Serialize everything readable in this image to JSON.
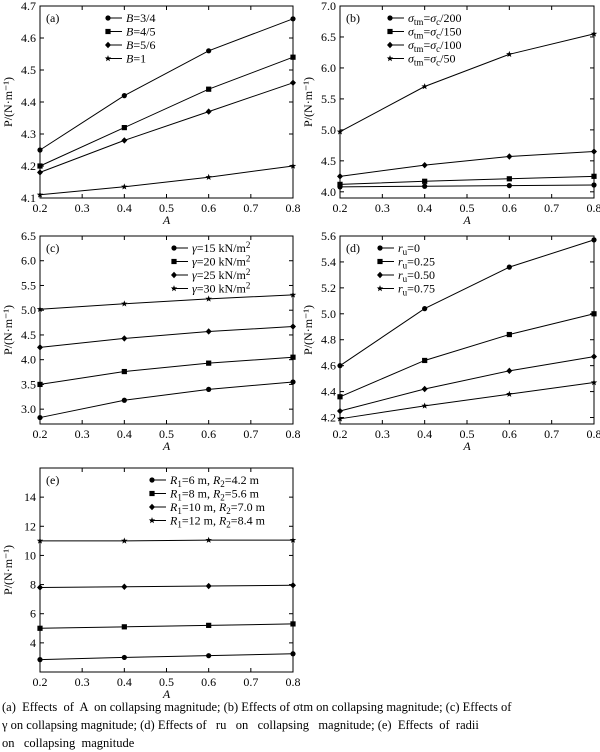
{
  "caption": {
    "line1": "(a)  Effects  of  A  on collapsing magnitude; (b) Effects of σtm on collapsing magnitude; (c) Effects of",
    "line2": "γ on collapsing magnitude; (d) Effects of   ru   on   collapsing   magnitude; (e)  Effects  of  radii",
    "line3": "on   collapsing  magnitude"
  },
  "chart_data": [
    {
      "type": "line",
      "panel_label": "(a)",
      "xlabel": "A",
      "ylabel": "P/(N·m⁻¹)",
      "x": [
        0.2,
        0.4,
        0.6,
        0.8
      ],
      "xlim": [
        0.2,
        0.8
      ],
      "ylim": [
        4.1,
        4.7
      ],
      "xticks": [
        "0.2",
        "0.3",
        "0.4",
        "0.5",
        "0.6",
        "0.7",
        "0.8"
      ],
      "yticks": [
        "4.1",
        "4.2",
        "4.3",
        "4.4",
        "4.5",
        "4.6",
        "4.7"
      ],
      "grid": false,
      "legend": "top-left",
      "series": [
        {
          "name": "B=3/4",
          "marker": "circle",
          "values": [
            4.25,
            4.42,
            4.56,
            4.66
          ]
        },
        {
          "name": "B=4/5",
          "marker": "square",
          "values": [
            4.2,
            4.32,
            4.44,
            4.54
          ]
        },
        {
          "name": "B=5/6",
          "marker": "diamond",
          "values": [
            4.18,
            4.28,
            4.37,
            4.46
          ]
        },
        {
          "name": "B=1",
          "marker": "star",
          "values": [
            4.11,
            4.135,
            4.165,
            4.2
          ]
        }
      ]
    },
    {
      "type": "line",
      "panel_label": "(b)",
      "xlabel": "A",
      "ylabel": "P/(N·m⁻¹)",
      "x": [
        0.2,
        0.4,
        0.6,
        0.8
      ],
      "xlim": [
        0.2,
        0.8
      ],
      "ylim": [
        3.9,
        7.0
      ],
      "xticks": [
        "0.2",
        "0.3",
        "0.4",
        "0.5",
        "0.6",
        "0.7",
        "0.8"
      ],
      "yticks": [
        "4.0",
        "4.5",
        "5.0",
        "5.5",
        "6.0",
        "6.5",
        "7.0"
      ],
      "grid": false,
      "legend": "top-left",
      "series": [
        {
          "name": "σtm=σc/200",
          "marker": "circle",
          "values": [
            4.08,
            4.09,
            4.1,
            4.11
          ]
        },
        {
          "name": "σtm=σc/150",
          "marker": "square",
          "values": [
            4.12,
            4.17,
            4.21,
            4.25
          ]
        },
        {
          "name": "σtm=σc/100",
          "marker": "diamond",
          "values": [
            4.25,
            4.43,
            4.57,
            4.65
          ]
        },
        {
          "name": "σtm=σc/50",
          "marker": "star",
          "values": [
            4.97,
            5.7,
            6.22,
            6.55
          ]
        }
      ]
    },
    {
      "type": "line",
      "panel_label": "(c)",
      "xlabel": "A",
      "ylabel": "P/(N·m⁻¹)",
      "x": [
        0.2,
        0.4,
        0.6,
        0.8
      ],
      "xlim": [
        0.2,
        0.8
      ],
      "ylim": [
        2.7,
        6.5
      ],
      "xticks": [
        "0.2",
        "0.3",
        "0.4",
        "0.5",
        "0.6",
        "0.7",
        "0.8"
      ],
      "yticks": [
        "3.0",
        "3.5",
        "4.0",
        "4.5",
        "5.0",
        "5.5",
        "6.0",
        "6.5"
      ],
      "grid": false,
      "legend": "top-right",
      "series": [
        {
          "name": "γ=15 kN/m2",
          "marker": "circle",
          "values": [
            2.83,
            3.18,
            3.4,
            3.55
          ]
        },
        {
          "name": "γ=20 kN/m2",
          "marker": "square",
          "values": [
            3.5,
            3.76,
            3.93,
            4.05
          ]
        },
        {
          "name": "γ=25 kN/m2",
          "marker": "diamond",
          "values": [
            4.25,
            4.43,
            4.57,
            4.67
          ]
        },
        {
          "name": "γ=30 kN/m2",
          "marker": "star",
          "values": [
            5.02,
            5.13,
            5.23,
            5.31
          ]
        }
      ]
    },
    {
      "type": "line",
      "panel_label": "(d)",
      "xlabel": "A",
      "ylabel": "P/(N·m⁻¹)",
      "x": [
        0.2,
        0.4,
        0.6,
        0.8
      ],
      "xlim": [
        0.2,
        0.8
      ],
      "ylim": [
        4.15,
        5.6
      ],
      "xticks": [
        "0.2",
        "0.3",
        "0.4",
        "0.5",
        "0.6",
        "0.7",
        "0.8"
      ],
      "yticks": [
        "4.2",
        "4.4",
        "4.6",
        "4.8",
        "5.0",
        "5.2",
        "5.4",
        "5.6"
      ],
      "grid": false,
      "legend": "top-left",
      "series": [
        {
          "name": "ru=0",
          "marker": "circle",
          "values": [
            4.6,
            5.04,
            5.36,
            5.57
          ]
        },
        {
          "name": "ru=0.25",
          "marker": "square",
          "values": [
            4.36,
            4.64,
            4.84,
            5.0
          ]
        },
        {
          "name": "ru=0.50",
          "marker": "diamond",
          "values": [
            4.25,
            4.42,
            4.56,
            4.67
          ]
        },
        {
          "name": "ru=0.75",
          "marker": "star",
          "values": [
            4.19,
            4.29,
            4.38,
            4.47
          ]
        }
      ]
    },
    {
      "type": "line",
      "panel_label": "(e)",
      "xlabel": "A",
      "ylabel": "P/(N·m⁻¹)",
      "x": [
        0.2,
        0.4,
        0.6,
        0.8
      ],
      "xlim": [
        0.2,
        0.8
      ],
      "ylim": [
        2,
        16
      ],
      "xticks": [
        "0.2",
        "0.3",
        "0.4",
        "0.5",
        "0.6",
        "0.7",
        "0.8"
      ],
      "yticks": [
        "4",
        "6",
        "8",
        "10",
        "12",
        "14"
      ],
      "grid": false,
      "legend": "top-right",
      "series": [
        {
          "name": "R1=6 m, R2=4.2 m",
          "marker": "circle",
          "values": [
            2.85,
            3.0,
            3.12,
            3.25
          ]
        },
        {
          "name": "R1=8 m, R2=5.6 m",
          "marker": "square",
          "values": [
            5.0,
            5.1,
            5.2,
            5.3
          ]
        },
        {
          "name": "R1=10 m, R2=7.0 m",
          "marker": "diamond",
          "values": [
            7.8,
            7.85,
            7.9,
            7.95
          ]
        },
        {
          "name": "R1=12 m, R2=8.4 m",
          "marker": "star",
          "values": [
            11.0,
            11.0,
            11.05,
            11.05
          ]
        }
      ]
    }
  ]
}
